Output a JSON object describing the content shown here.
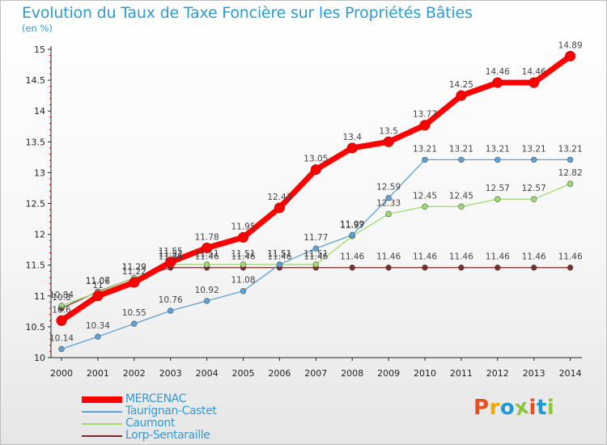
{
  "header": {
    "title": "Evolution du Taux de Taxe Foncière sur les Propriétés Bâties",
    "unit": "(en %)"
  },
  "logo": {
    "text": "Proxiti",
    "colors": [
      "#e94e1b",
      "#f2a900",
      "#1d9ad6",
      "#8cc63f",
      "#e94e1b",
      "#1d9ad6",
      "#8cc63f"
    ]
  },
  "chart_data": {
    "type": "line",
    "title": "Evolution du Taux de Taxe Foncière sur les Propriétés Bâties",
    "ylabel": "(en %)",
    "xlabel": "",
    "x": [
      "2000",
      "2001",
      "2002",
      "2003",
      "2004",
      "2005",
      "2006",
      "2007",
      "2008",
      "2009",
      "2010",
      "2011",
      "2012",
      "2013",
      "2014"
    ],
    "ylim": [
      10,
      15
    ],
    "yticks": [
      "10",
      "10.5",
      "11",
      "11.5",
      "12",
      "12.5",
      "13",
      "13.5",
      "14",
      "14.5",
      "15"
    ],
    "grid": false,
    "legend_position": "bottom-left",
    "series": [
      {
        "name": "MERCENAC",
        "color": "#ff0000",
        "values": [
          10.6,
          11,
          11.22,
          11.55,
          11.78,
          11.95,
          12.43,
          13.05,
          13.4,
          13.5,
          13.77,
          14.25,
          14.46,
          14.46,
          14.89
        ],
        "labels": [
          "10.6",
          "11",
          "11.22",
          "11.55",
          "11.78",
          "11.95",
          "12.43",
          "13.05",
          "13.4",
          "13.5",
          "13.77",
          "14.25",
          "14.46",
          "14.46",
          "14.89"
        ]
      },
      {
        "name": "Taurignan-Castet",
        "color": "#5aa2d8",
        "values": [
          10.14,
          10.34,
          10.55,
          10.76,
          10.92,
          11.08,
          11.51,
          11.77,
          11.99,
          12.59,
          13.21,
          13.21,
          13.21,
          13.21,
          13.21
        ],
        "labels": [
          "10.14",
          "10.34",
          "10.55",
          "10.76",
          "10.92",
          "11.08",
          "11.51",
          "11.77",
          "11.99",
          "12.59",
          "13.21",
          "13.21",
          "13.21",
          "13.21",
          "13.21"
        ]
      },
      {
        "name": "Caumont",
        "color": "#9fdc6f",
        "values": [
          10.84,
          11.06,
          11.29,
          11.51,
          11.51,
          11.51,
          11.51,
          11.51,
          11.97,
          12.33,
          12.45,
          12.45,
          12.57,
          12.57,
          12.82
        ],
        "labels": [
          "10.84",
          "11.06",
          "11.29",
          "11.51",
          "11.51",
          "11.51",
          "11.51",
          "11.51",
          "11.97",
          "12.33",
          "12.45",
          "12.45",
          "12.57",
          "12.57",
          "12.82"
        ]
      },
      {
        "name": "Lorp-Sentaraille",
        "color": "#7a2a2a",
        "values": [
          10.8,
          11.07,
          11.29,
          11.46,
          11.46,
          11.46,
          11.46,
          11.46,
          11.46,
          11.46,
          11.46,
          11.46,
          11.46,
          11.46,
          11.46
        ],
        "labels": [
          "10.8",
          "11.07",
          "11.29",
          "11.46",
          "11.46",
          "11.46",
          "11.46",
          "11.46",
          "11.46",
          "11.46",
          "11.46",
          "11.46",
          "11.46",
          "11.46",
          "11.46"
        ]
      }
    ]
  }
}
